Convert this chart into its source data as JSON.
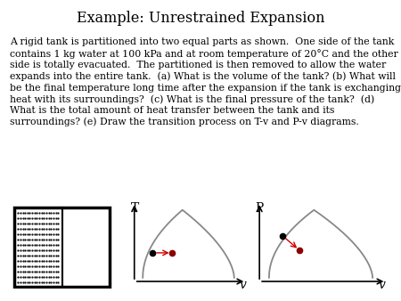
{
  "title": "Example: Unrestrained Expansion",
  "body_text": "A rigid tank is partitioned into two equal parts as shown.  One side of the tank\ncontains 1 kg water at 100 kPa and at room temperature of 20°C and the other\nside is totally evacuated.  The partitioned is then removed to allow the water\nexpands into the entire tank.  (a) What is the volume of the tank? (b) What will\nbe the final temperature long time after the expansion if the tank is exchanging\nheat with its surroundings?  (c) What is the final pressure of the tank?  (d)\nWhat is the total amount of heat transfer between the tank and its\nsurroundings? (e) Draw the transition process on T-v and P-v diagrams.",
  "background_color": "#ffffff",
  "title_fontsize": 11.5,
  "body_fontsize": 7.8,
  "diagram_label_T": "T",
  "diagram_label_P": "P",
  "diagram_label_v": "v",
  "curve_color": "#888888",
  "axes_color": "#000000",
  "dot1_color": "#000000",
  "dot2_color": "#8b0000",
  "arrow_color": "#cc0000"
}
